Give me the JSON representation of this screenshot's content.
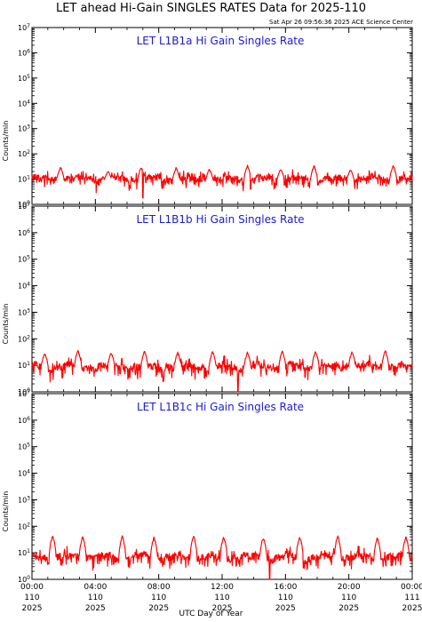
{
  "page": {
    "title": "LET ahead Hi-Gain SINGLES RATES Data for 2025-110",
    "timestamp": "Sat Apr 26 09:56:36 2025 ACE Science Center"
  },
  "colors": {
    "series": "#ff0000",
    "panel_title": "#1a1ad6",
    "axis": "#000000",
    "background": "#ffffff"
  },
  "chart_data": [
    {
      "type": "line",
      "title": "LET L1B1a Hi Gain Singles Rate",
      "ylabel": "Counts/min",
      "yscale": "log",
      "ylim": [
        1,
        10000000
      ],
      "ytick_exponents": [
        "0",
        "1",
        "2",
        "3",
        "4",
        "5",
        "6",
        "7"
      ],
      "xlim_hours": [
        0,
        24
      ],
      "series": [
        {
          "style": "red-line",
          "baseline": 10,
          "peaks": [
            {
              "x": 1.8,
              "y": 30
            },
            {
              "x": 4.8,
              "y": 20
            },
            {
              "x": 6.9,
              "y": 30
            },
            {
              "x": 9.1,
              "y": 28
            },
            {
              "x": 11.2,
              "y": 25
            },
            {
              "x": 13.6,
              "y": 35
            },
            {
              "x": 15.7,
              "y": 25
            },
            {
              "x": 17.8,
              "y": 34
            },
            {
              "x": 20.1,
              "y": 24
            },
            {
              "x": 22.8,
              "y": 35
            }
          ],
          "dips": [
            {
              "x": 7.0,
              "y": 1.8
            },
            {
              "x": 13.8,
              "y": 4
            }
          ]
        }
      ]
    },
    {
      "type": "line",
      "title": "LET L1B1b Hi Gain Singles Rate",
      "ylabel": "Counts/min",
      "yscale": "log",
      "ylim": [
        1,
        10000000
      ],
      "ytick_exponents": [
        "0",
        "1",
        "2",
        "3",
        "4",
        "5",
        "6",
        "7"
      ],
      "xlim_hours": [
        0,
        24
      ],
      "series": [
        {
          "style": "red-line",
          "baseline": 9,
          "peaks": [
            {
              "x": 0.8,
              "y": 28
            },
            {
              "x": 2.9,
              "y": 36
            },
            {
              "x": 5.0,
              "y": 30
            },
            {
              "x": 7.1,
              "y": 34
            },
            {
              "x": 9.2,
              "y": 30
            },
            {
              "x": 11.4,
              "y": 33
            },
            {
              "x": 13.6,
              "y": 30
            },
            {
              "x": 15.8,
              "y": 34
            },
            {
              "x": 17.9,
              "y": 34
            },
            {
              "x": 20.2,
              "y": 33
            },
            {
              "x": 22.3,
              "y": 35
            }
          ],
          "dips": [
            {
              "x": 13.0,
              "y": 1
            },
            {
              "x": 8.3,
              "y": 2.5
            }
          ]
        }
      ]
    },
    {
      "type": "line",
      "title": "LET L1B1c Hi Gain Singles Rate",
      "ylabel": "Counts/min",
      "yscale": "log",
      "ylim": [
        1,
        10000000
      ],
      "ytick_exponents": [
        "0",
        "1",
        "2",
        "3",
        "4",
        "5",
        "6",
        "7"
      ],
      "xlim_hours": [
        0,
        24
      ],
      "series": [
        {
          "style": "red-line",
          "baseline": 7,
          "peaks": [
            {
              "x": 1.3,
              "y": 45
            },
            {
              "x": 3.2,
              "y": 40
            },
            {
              "x": 5.7,
              "y": 42
            },
            {
              "x": 7.7,
              "y": 38
            },
            {
              "x": 10.2,
              "y": 42
            },
            {
              "x": 12.1,
              "y": 40
            },
            {
              "x": 14.6,
              "y": 38
            },
            {
              "x": 16.9,
              "y": 40
            },
            {
              "x": 19.3,
              "y": 42
            },
            {
              "x": 21.8,
              "y": 36
            },
            {
              "x": 23.6,
              "y": 40
            }
          ],
          "dips": [
            {
              "x": 15.0,
              "y": 1
            }
          ]
        }
      ]
    }
  ],
  "x_axis": {
    "label": "UTC Day of Year",
    "ticks": [
      {
        "hours": 0,
        "time": "00:00",
        "day": "110",
        "year": "2025"
      },
      {
        "hours": 4,
        "time": "04:00",
        "day": "110",
        "year": "2025"
      },
      {
        "hours": 8,
        "time": "08:00",
        "day": "110",
        "year": "2025"
      },
      {
        "hours": 12,
        "time": "12:00",
        "day": "110",
        "year": "2025"
      },
      {
        "hours": 16,
        "time": "16:00",
        "day": "110",
        "year": "2025"
      },
      {
        "hours": 20,
        "time": "20:00",
        "day": "110",
        "year": "2025"
      },
      {
        "hours": 24,
        "time": "00:00",
        "day": "111",
        "year": "2025"
      }
    ]
  }
}
